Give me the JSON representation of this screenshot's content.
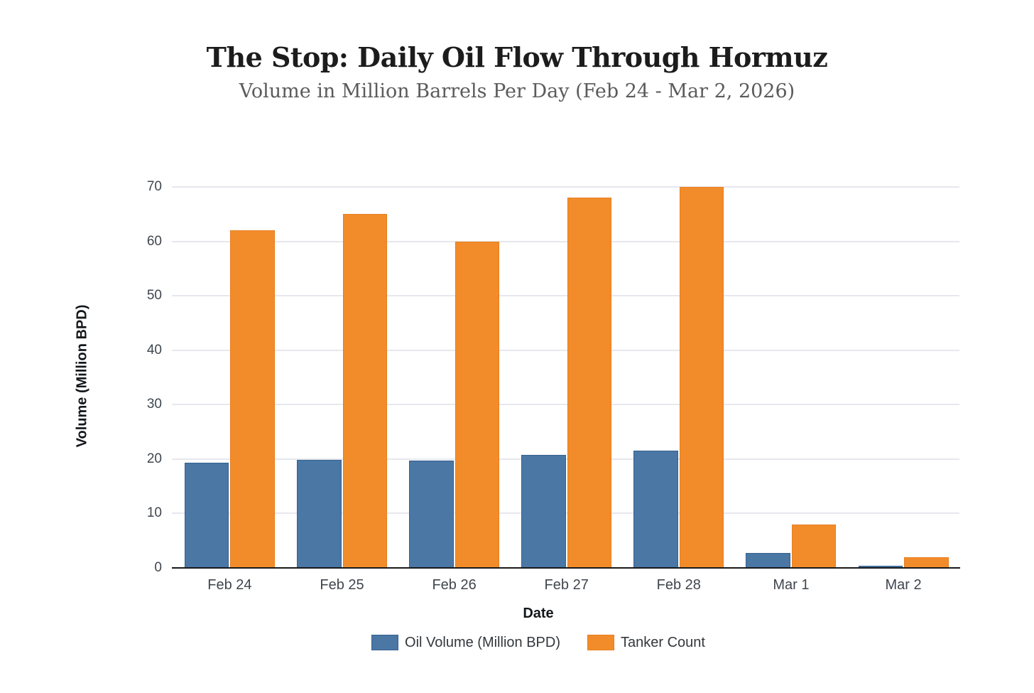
{
  "page": {
    "title": "The Stop: Daily Oil Flow Through Hormuz",
    "subtitle": "Volume in Million Barrels Per Day (Feb 24 - Mar 2, 2026)"
  },
  "chart_data": {
    "type": "bar",
    "title": "The Stop: Daily Oil Flow Through Hormuz",
    "subtitle": "Volume in Million Barrels Per Day (Feb 24 - Mar 2, 2026)",
    "xlabel": "Date",
    "ylabel": "Volume (Million BPD)",
    "categories": [
      "Feb 24",
      "Feb 25",
      "Feb 26",
      "Feb 27",
      "Feb 28",
      "Mar 1",
      "Mar 2"
    ],
    "series": [
      {
        "name": "Oil Volume (Million BPD)",
        "color": "#4b77a5",
        "border_color": "#34618f",
        "values": [
          19.3,
          19.9,
          19.7,
          20.8,
          21.5,
          2.8,
          0.4
        ]
      },
      {
        "name": "Tanker Count",
        "color": "#f28c2b",
        "border_color": "#e67e1f",
        "values": [
          62,
          65,
          60,
          68,
          70,
          8,
          2
        ]
      }
    ],
    "ylim": [
      0,
      70
    ],
    "yticks": [
      0,
      10,
      20,
      30,
      40,
      50,
      60,
      70
    ],
    "grid": true,
    "legend_position": "bottom"
  },
  "colors": {
    "background": "#ffffff",
    "gridline": "#e7e8ee",
    "axis_line": "#17191c",
    "tick_label": "#3f464e",
    "axis_title": "#14171a",
    "title": "#1c1c1c",
    "subtitle": "#5b5b5b"
  }
}
